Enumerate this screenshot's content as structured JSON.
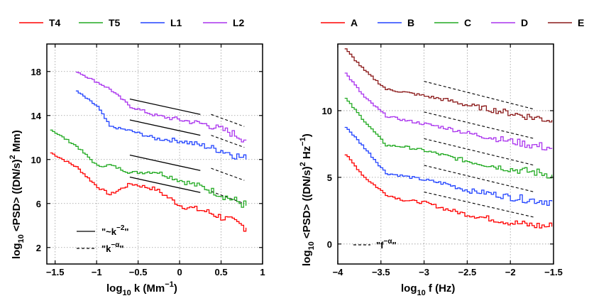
{
  "chart_data": [
    {
      "type": "line",
      "id": "left",
      "xlabel_main": "log",
      "xlabel_sub": "10",
      "xlabel_rest": " k (Mm",
      "xlabel_sup": "−1",
      "xlabel_end": ")",
      "ylabel_main": "log",
      "ylabel_sub": "10",
      "ylabel_rest": " <PSD> ((DN/s)",
      "ylabel_sup": "2",
      "ylabel_end": " Mm)",
      "xlim": [
        -1.6,
        1.0
      ],
      "ylim": [
        0.5,
        20.5
      ],
      "xticks": [
        -1.5,
        -1,
        -0.5,
        0,
        0.5,
        1
      ],
      "xtick_labels": [
        "−1.5",
        "−1",
        "−0.5",
        "0",
        "0.5",
        "1"
      ],
      "yticks": [
        2,
        6,
        10,
        14,
        18
      ],
      "ytick_labels": [
        "2",
        "6",
        "10",
        "14",
        "18"
      ],
      "grid": true,
      "legend_position": "top",
      "series": [
        {
          "name": "T4",
          "color": "#ff0000",
          "x": [
            -1.56,
            -1.25,
            -1.0,
            -0.85,
            -0.6,
            -0.3,
            0.0,
            0.3,
            0.55,
            0.8
          ],
          "y": [
            10.6,
            9.3,
            7.5,
            6.8,
            7.8,
            7.3,
            5.8,
            5.3,
            4.6,
            3.8
          ]
        },
        {
          "name": "T5",
          "color": "#22aa22",
          "x": [
            -1.56,
            -1.25,
            -1.0,
            -0.85,
            -0.6,
            -0.3,
            0.0,
            0.3,
            0.55,
            0.8
          ],
          "y": [
            12.7,
            11.2,
            9.4,
            9.5,
            8.8,
            8.9,
            8.1,
            7.4,
            6.6,
            5.8
          ]
        },
        {
          "name": "L1",
          "color": "#2244ff",
          "x": [
            -1.25,
            -1.0,
            -0.85,
            -0.6,
            -0.3,
            0.0,
            0.3,
            0.55,
            0.8
          ],
          "y": [
            16.2,
            14.8,
            13.0,
            12.6,
            11.9,
            11.7,
            11.2,
            10.7,
            10.0
          ]
        },
        {
          "name": "L2",
          "color": "#aa33ee",
          "x": [
            -1.25,
            -1.0,
            -0.85,
            -0.6,
            -0.3,
            0.0,
            0.3,
            0.55,
            0.8
          ],
          "y": [
            18.0,
            17.0,
            16.4,
            14.8,
            14.0,
            13.6,
            13.2,
            12.6,
            11.8
          ]
        }
      ],
      "solid_fits": [
        {
          "x": [
            -0.6,
            0.25
          ],
          "y": [
            15.5,
            14.1
          ]
        },
        {
          "x": [
            -0.6,
            0.25
          ],
          "y": [
            13.6,
            12.2
          ]
        },
        {
          "x": [
            -0.6,
            0.25
          ],
          "y": [
            10.4,
            9.0
          ]
        },
        {
          "x": [
            -0.6,
            0.25
          ],
          "y": [
            8.4,
            7.0
          ]
        }
      ],
      "dashed_fits": [
        {
          "x": [
            0.38,
            0.78
          ],
          "y": [
            14.1,
            13.0
          ]
        },
        {
          "x": [
            0.38,
            0.78
          ],
          "y": [
            12.2,
            11.1
          ]
        },
        {
          "x": [
            0.38,
            0.78
          ],
          "y": [
            9.2,
            8.1
          ]
        },
        {
          "x": [
            0.38,
            0.78
          ],
          "y": [
            7.1,
            6.0
          ]
        }
      ],
      "annotation_solid": "\"~k",
      "annotation_solid_sup": "−2",
      "annotation_solid_end": "\"",
      "annotation_dashed": "\"k",
      "annotation_dashed_sup": "−α",
      "annotation_dashed_end": "\""
    },
    {
      "type": "line",
      "id": "right",
      "xlabel_main": "log",
      "xlabel_sub": "10",
      "xlabel_rest": " f (Hz)",
      "ylabel_main": "log",
      "ylabel_sub": "10",
      "ylabel_rest": " <PSD> ((DN/s)",
      "ylabel_sup": "2",
      "ylabel_end": " Hz",
      "ylabel_sup2": "−1",
      "ylabel_end2": ")",
      "xlim": [
        -4.0,
        -1.5
      ],
      "ylim": [
        -1.5,
        15.0
      ],
      "xticks": [
        -4,
        -3.5,
        -3,
        -2.5,
        -2,
        -1.5
      ],
      "xtick_labels": [
        "−4",
        "−3.5",
        "−3",
        "−2.5",
        "−2",
        "−1.5"
      ],
      "yticks": [
        0,
        5,
        10
      ],
      "ytick_labels": [
        "0",
        "5",
        "10"
      ],
      "grid": true,
      "legend_position": "top",
      "series": [
        {
          "name": "A",
          "color": "#ff0000",
          "x": [
            -3.92,
            -3.7,
            -3.45,
            -3.25,
            -3.0,
            -2.75,
            -2.5,
            -2.25,
            -2.0,
            -1.75,
            -1.52
          ],
          "y": [
            6.7,
            5.0,
            3.7,
            3.3,
            3.1,
            2.6,
            2.2,
            1.9,
            1.6,
            1.4,
            1.3
          ]
        },
        {
          "name": "B",
          "color": "#2244ff",
          "x": [
            -3.92,
            -3.7,
            -3.45,
            -3.25,
            -3.0,
            -2.75,
            -2.5,
            -2.25,
            -2.0,
            -1.75,
            -1.52
          ],
          "y": [
            8.8,
            7.2,
            5.3,
            5.1,
            4.8,
            4.5,
            4.0,
            3.8,
            3.5,
            3.3,
            3.2
          ]
        },
        {
          "name": "C",
          "color": "#22aa22",
          "x": [
            -3.92,
            -3.7,
            -3.45,
            -3.25,
            -3.0,
            -2.75,
            -2.5,
            -2.25,
            -2.0,
            -1.75,
            -1.52
          ],
          "y": [
            10.9,
            9.2,
            7.4,
            7.3,
            7.0,
            6.6,
            6.2,
            5.9,
            5.6,
            5.4,
            5.2
          ]
        },
        {
          "name": "D",
          "color": "#aa33ee",
          "x": [
            -3.92,
            -3.7,
            -3.45,
            -3.25,
            -3.0,
            -2.75,
            -2.5,
            -2.25,
            -2.0,
            -1.75,
            -1.52
          ],
          "y": [
            12.8,
            11.0,
            9.6,
            9.3,
            9.0,
            8.7,
            8.3,
            8.0,
            7.7,
            7.4,
            7.2
          ]
        },
        {
          "name": "E",
          "color": "#8b1a1a",
          "x": [
            -3.92,
            -3.7,
            -3.45,
            -3.25,
            -3.0,
            -2.75,
            -2.5,
            -2.25,
            -2.0,
            -1.75,
            -1.52
          ],
          "y": [
            14.6,
            13.0,
            11.6,
            11.4,
            11.1,
            10.8,
            10.4,
            10.1,
            9.8,
            9.5,
            9.3
          ]
        }
      ],
      "dashed_fits": [
        {
          "x": [
            -3.0,
            -1.72
          ],
          "y": [
            12.2,
            10.1
          ]
        },
        {
          "x": [
            -3.0,
            -1.72
          ],
          "y": [
            9.9,
            7.9
          ]
        },
        {
          "x": [
            -3.0,
            -1.72
          ],
          "y": [
            7.9,
            5.9
          ]
        },
        {
          "x": [
            -3.0,
            -1.72
          ],
          "y": [
            5.9,
            3.9
          ]
        },
        {
          "x": [
            -3.0,
            -1.72
          ],
          "y": [
            3.9,
            2.0
          ]
        }
      ],
      "annotation_dashed": "\"f",
      "annotation_dashed_sup": "−α",
      "annotation_dashed_end": "\""
    }
  ]
}
